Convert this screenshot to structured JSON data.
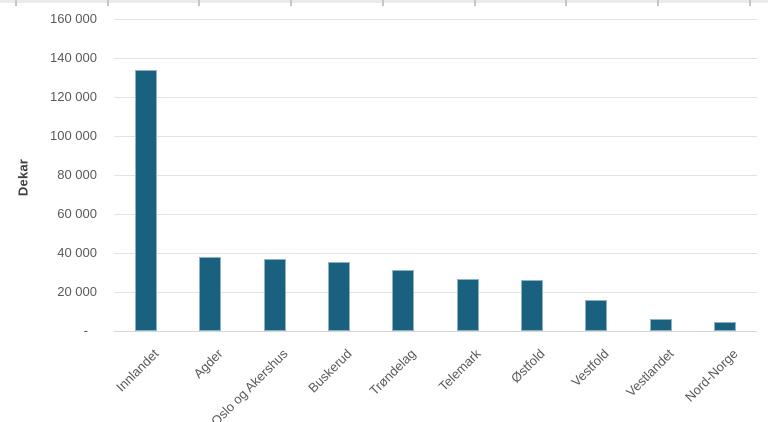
{
  "chart_data": {
    "type": "bar",
    "title": "",
    "ylabel": "Dekar",
    "xlabel": "",
    "categories": [
      "Innlandet",
      "Agder",
      "Oslo og Akershus",
      "Buskerud",
      "Trøndelag",
      "Telemark",
      "Østfold",
      "Vestfold",
      "Vestlandet",
      "Nord-Norge"
    ],
    "values": [
      134000,
      38000,
      37000,
      35500,
      31500,
      26500,
      26000,
      16000,
      6000,
      4500
    ],
    "ylim": [
      0,
      160000
    ],
    "ytick_interval": 20000,
    "ytick_labels_top_to_bottom": [
      "160 000",
      "140 000",
      "120 000",
      "100 000",
      "80 000",
      "60 000",
      "40 000",
      "20 000",
      "-"
    ],
    "zero_tick_label": "-",
    "grid": "horizontal",
    "legend": null,
    "colors": {
      "bar_fill": "#19617F",
      "bar_border": "#8FB2C4",
      "gridline": "#E3E3E3",
      "axis_line": "#D6D6D6",
      "axis_text": "#595959",
      "axis_title_text": "#3F3F3F"
    }
  }
}
